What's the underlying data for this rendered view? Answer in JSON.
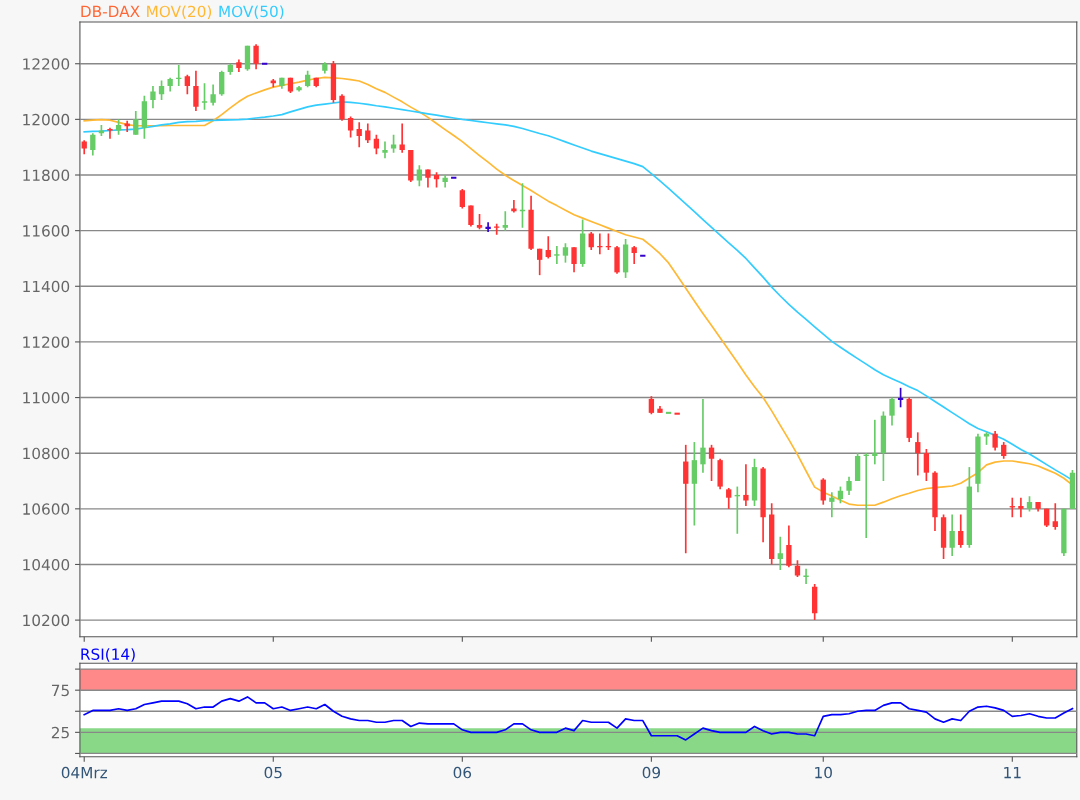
{
  "chart_data": [
    {
      "type": "candlestick",
      "title": "DB-DAX",
      "legend": "top left",
      "grid": "y",
      "tick_labels": "y",
      "categories": [
        null,
        null,
        null,
        null,
        null,
        null,
        null,
        null,
        null,
        null,
        null,
        null,
        null,
        null,
        null,
        null,
        null,
        null,
        null,
        null,
        null,
        null,
        null,
        null,
        null,
        null,
        null,
        null,
        null,
        null,
        null,
        null,
        null,
        null,
        null,
        null,
        null,
        null,
        null,
        null,
        null,
        null,
        null,
        null,
        null,
        null,
        null,
        null,
        null,
        null,
        null,
        null,
        null,
        null,
        null,
        null,
        null,
        null,
        null,
        null,
        null,
        null,
        null,
        null,
        null,
        null,
        null,
        null,
        null,
        null,
        null,
        null,
        null,
        null,
        null,
        null,
        null,
        null,
        null,
        null,
        null,
        null,
        null,
        null,
        null,
        null,
        null,
        null,
        null,
        null,
        null,
        null,
        null,
        null,
        null,
        null,
        null,
        null,
        null,
        null,
        null,
        null,
        null,
        null,
        null,
        null,
        null,
        null,
        null,
        null,
        null,
        null,
        null,
        null,
        null,
        null
      ],
      "ohlc": [
        [
          11920,
          11925,
          11875,
          11895
        ],
        [
          11890,
          11950,
          11870,
          11945
        ],
        [
          11950,
          11980,
          11940,
          11960
        ],
        [
          11965,
          11970,
          11930,
          11960
        ],
        [
          11960,
          12000,
          11945,
          11980
        ],
        [
          11985,
          11995,
          11955,
          11975
        ],
        [
          11945,
          12030,
          11945,
          12000
        ],
        [
          11970,
          12085,
          11930,
          12065
        ],
        [
          12070,
          12120,
          12040,
          12100
        ],
        [
          12090,
          12140,
          12070,
          12120
        ],
        [
          12120,
          12150,
          12100,
          12145
        ],
        [
          12145,
          12195,
          12120,
          12150
        ],
        [
          12155,
          12160,
          12090,
          12120
        ],
        [
          12120,
          12175,
          12030,
          12045
        ],
        [
          12060,
          12130,
          12035,
          12065
        ],
        [
          12060,
          12125,
          12050,
          12090
        ],
        [
          12090,
          12175,
          12085,
          12170
        ],
        [
          12170,
          12200,
          12160,
          12195
        ],
        [
          12205,
          12215,
          12170,
          12185
        ],
        [
          12180,
          12265,
          12175,
          12265
        ],
        [
          12265,
          12270,
          12180,
          12200
        ],
        [
          12200,
          12200,
          12200,
          12200
        ],
        [
          12140,
          12145,
          12115,
          12130
        ],
        [
          12120,
          12150,
          12110,
          12150
        ],
        [
          12150,
          12150,
          12095,
          12100
        ],
        [
          12105,
          12120,
          12100,
          12115
        ],
        [
          12120,
          12175,
          12115,
          12160
        ],
        [
          12150,
          12150,
          12115,
          12120
        ],
        [
          12175,
          12205,
          12165,
          12200
        ],
        [
          12200,
          12210,
          12060,
          12070
        ],
        [
          12085,
          12090,
          11995,
          12000
        ],
        [
          12005,
          12010,
          11935,
          11960
        ],
        [
          11965,
          11990,
          11900,
          11940
        ],
        [
          11960,
          11985,
          11915,
          11925
        ],
        [
          11930,
          11945,
          11875,
          11895
        ],
        [
          11880,
          11920,
          11860,
          11890
        ],
        [
          11895,
          11945,
          11880,
          11910
        ],
        [
          11910,
          11985,
          11880,
          11890
        ],
        [
          11890,
          11890,
          11775,
          11780
        ],
        [
          11780,
          11835,
          11760,
          11820
        ],
        [
          11820,
          11820,
          11755,
          11790
        ],
        [
          11800,
          11810,
          11755,
          11785
        ],
        [
          11775,
          11800,
          11755,
          11790
        ],
        [
          11790,
          11790,
          11790,
          11790
        ],
        [
          11745,
          11750,
          11680,
          11685
        ],
        [
          11690,
          11690,
          11615,
          11620
        ],
        [
          11620,
          11660,
          11605,
          11610
        ],
        [
          11610,
          11630,
          11595,
          11610
        ],
        [
          11615,
          11625,
          11585,
          11610
        ],
        [
          11610,
          11670,
          11600,
          11620
        ],
        [
          11680,
          11710,
          11665,
          11670
        ],
        [
          11670,
          11770,
          11610,
          11675
        ],
        [
          11675,
          11725,
          11530,
          11535
        ],
        [
          11535,
          11535,
          11440,
          11495
        ],
        [
          11530,
          11580,
          11500,
          11505
        ],
        [
          11510,
          11545,
          11480,
          11515
        ],
        [
          11510,
          11555,
          11485,
          11540
        ],
        [
          11540,
          11540,
          11450,
          11480
        ],
        [
          11480,
          11640,
          11470,
          11590
        ],
        [
          11590,
          11595,
          11530,
          11540
        ],
        [
          11545,
          11590,
          11515,
          11540
        ],
        [
          11545,
          11590,
          11530,
          11540
        ],
        [
          11540,
          11545,
          11445,
          11450
        ],
        [
          11450,
          11570,
          11430,
          11550
        ],
        [
          11540,
          11545,
          11480,
          11520
        ],
        [
          11510,
          11510,
          11510,
          11510
        ],
        [
          10995,
          11005,
          10940,
          10945
        ],
        [
          10960,
          10970,
          10945,
          10945
        ],
        [
          10945,
          10945,
          10945,
          10945
        ],
        [
          10942,
          10942,
          10942,
          10942
        ],
        [
          10770,
          10830,
          10440,
          10690
        ],
        [
          10690,
          10840,
          10540,
          10775
        ],
        [
          10760,
          10995,
          10730,
          10820
        ],
        [
          10820,
          10830,
          10700,
          10780
        ],
        [
          10775,
          10780,
          10670,
          10680
        ],
        [
          10670,
          10675,
          10600,
          10640
        ],
        [
          10645,
          10680,
          10510,
          10650
        ],
        [
          10650,
          10760,
          10610,
          10630
        ],
        [
          10630,
          10780,
          10610,
          10750
        ],
        [
          10745,
          10750,
          10480,
          10570
        ],
        [
          10580,
          10620,
          10400,
          10420
        ],
        [
          10420,
          10500,
          10380,
          10440
        ],
        [
          10470,
          10540,
          10390,
          10395
        ],
        [
          10395,
          10415,
          10355,
          10360
        ],
        [
          10355,
          10385,
          10330,
          10360
        ],
        [
          10320,
          10330,
          10200,
          10225
        ],
        [
          10705,
          10710,
          10615,
          10630
        ],
        [
          10625,
          10660,
          10570,
          10640
        ],
        [
          10635,
          10680,
          10620,
          10665
        ],
        [
          10665,
          10715,
          10650,
          10700
        ],
        [
          10700,
          10800,
          10700,
          10790
        ],
        [
          10790,
          10800,
          10495,
          10795
        ],
        [
          10790,
          10920,
          10760,
          10800
        ],
        [
          10800,
          10950,
          10700,
          10935
        ],
        [
          10935,
          11000,
          10900,
          10995
        ],
        [
          10995,
          11035,
          10965,
          10995
        ],
        [
          10995,
          11000,
          10840,
          10855
        ],
        [
          10840,
          10875,
          10720,
          10800
        ],
        [
          10800,
          10815,
          10700,
          10730
        ],
        [
          10730,
          10735,
          10520,
          10570
        ],
        [
          10570,
          10580,
          10420,
          10460
        ],
        [
          10460,
          10580,
          10430,
          10520
        ],
        [
          10520,
          10580,
          10460,
          10470
        ],
        [
          10470,
          10750,
          10460,
          10680
        ],
        [
          10690,
          10870,
          10660,
          10860
        ],
        [
          10860,
          10875,
          10830,
          10870
        ],
        [
          10870,
          10880,
          10810,
          10820
        ],
        [
          10830,
          10840,
          10780,
          10790
        ],
        [
          10610,
          10640,
          10570,
          10605
        ],
        [
          10610,
          10640,
          10570,
          10600
        ],
        [
          10600,
          10645,
          10590,
          10625
        ],
        [
          10625,
          10625,
          10590,
          10600
        ],
        [
          10600,
          10600,
          10535,
          10540
        ],
        [
          10555,
          10620,
          10525,
          10535
        ],
        [
          10440,
          10600,
          10430,
          10600
        ],
        [
          10600,
          10740,
          10600,
          10730
        ]
      ],
      "colors": [
        "#ff3333",
        "#66cc66",
        "#66cc66",
        "#ff3333",
        "#66cc66",
        "#ff3333",
        "#66cc66",
        "#66cc66",
        "#66cc66",
        "#66cc66",
        "#66cc66",
        "#66cc66",
        "#ff3333",
        "#ff3333",
        "#66cc66",
        "#66cc66",
        "#66cc66",
        "#66cc66",
        "#ff3333",
        "#66cc66",
        "#ff3333",
        "#3300cc",
        "#ff3333",
        "#66cc66",
        "#ff3333",
        "#66cc66",
        "#66cc66",
        "#ff3333",
        "#66cc66",
        "#ff3333",
        "#ff3333",
        "#ff3333",
        "#ff3333",
        "#ff3333",
        "#ff3333",
        "#66cc66",
        "#66cc66",
        "#ff3333",
        "#ff3333",
        "#66cc66",
        "#ff3333",
        "#ff3333",
        "#66cc66",
        "#3300cc",
        "#ff3333",
        "#ff3333",
        "#ff3333",
        "#3300cc",
        "#ff3333",
        "#66cc66",
        "#ff3333",
        "#66cc66",
        "#ff3333",
        "#ff3333",
        "#ff3333",
        "#66cc66",
        "#66cc66",
        "#ff3333",
        "#66cc66",
        "#ff3333",
        "#ff3333",
        "#ff3333",
        "#ff3333",
        "#66cc66",
        "#ff3333",
        "#3300cc",
        "#ff3333",
        "#ff3333",
        "#66cc66",
        "#ff3333",
        "#ff3333",
        "#66cc66",
        "#66cc66",
        "#ff3333",
        "#ff3333",
        "#ff3333",
        "#66cc66",
        "#ff3333",
        "#66cc66",
        "#ff3333",
        "#ff3333",
        "#66cc66",
        "#ff3333",
        "#ff3333",
        "#66cc66",
        "#ff3333",
        "#ff3333",
        "#66cc66",
        "#66cc66",
        "#66cc66",
        "#66cc66",
        "#66cc66",
        "#66cc66",
        "#66cc66",
        "#66cc66",
        "#3300cc",
        "#ff3333",
        "#ff3333",
        "#ff3333",
        "#ff3333",
        "#ff3333",
        "#66cc66",
        "#ff3333",
        "#66cc66",
        "#66cc66",
        "#66cc66",
        "#ff3333",
        "#ff3333",
        "#ff3333",
        "#ff3333",
        "#66cc66",
        "#ff3333",
        "#ff3333",
        "#ff3333",
        "#66cc66",
        "#66cc66"
      ],
      "series": [
        {
          "name": "MOV(20)",
          "type": "line",
          "color": "#ffb833",
          "values": [
            11995,
            11997,
            11999,
            11997,
            11989,
            11981,
            11977,
            11977,
            11977,
            11977,
            11978,
            11978,
            11978,
            11978,
            11978,
            11995,
            12017,
            12041,
            12064,
            12083,
            12095,
            12106,
            12116,
            12122,
            12128,
            12134,
            12141,
            12147,
            12151,
            12149,
            12147,
            12143,
            12138,
            12125,
            12110,
            12097,
            12080,
            12063,
            12044,
            12027,
            12007,
            11985,
            11963,
            11942,
            11920,
            11895,
            11870,
            11846,
            11821,
            11799,
            11780,
            11762,
            11744,
            11725,
            11706,
            11690,
            11673,
            11657,
            11645,
            11633,
            11621,
            11609,
            11597,
            11585,
            11577,
            11569,
            11544,
            11517,
            11484,
            11439,
            11393,
            11347,
            11302,
            11259,
            11215,
            11171,
            11127,
            11081,
            11039,
            11000,
            10952,
            10900,
            10849,
            10795,
            10736,
            10678,
            10660,
            10646,
            10631,
            10617,
            10613,
            10613,
            10613,
            10624,
            10636,
            10647,
            10656,
            10666,
            10673,
            10676,
            10679,
            10682,
            10692,
            10711,
            10730,
            10758,
            10768,
            10772,
            10772,
            10767,
            10762,
            10754,
            10741,
            10728,
            10710,
            10685
          ]
        },
        {
          "name": "MOV(50)",
          "type": "line",
          "color": "#33ccff",
          "values": [
            11955,
            11957,
            11958,
            11960,
            11962,
            11963,
            11965,
            11970,
            11975,
            11980,
            11984,
            11989,
            11992,
            11993,
            11995,
            11996,
            11997,
            11998,
            11999,
            12001,
            12005,
            12008,
            12012,
            12017,
            12027,
            12036,
            12045,
            12051,
            12055,
            12059,
            12063,
            12061,
            12058,
            12054,
            12049,
            12045,
            12040,
            12035,
            12030,
            12025,
            12020,
            12015,
            12010,
            12005,
            12000,
            11996,
            11992,
            11988,
            11984,
            11980,
            11975,
            11967,
            11958,
            11949,
            11941,
            11930,
            11919,
            11908,
            11897,
            11886,
            11877,
            11868,
            11859,
            11850,
            11841,
            11830,
            11805,
            11779,
            11752,
            11724,
            11696,
            11668,
            11640,
            11612,
            11584,
            11556,
            11529,
            11500,
            11466,
            11433,
            11397,
            11365,
            11335,
            11307,
            11281,
            11254,
            11228,
            11202,
            11181,
            11160,
            11140,
            11120,
            11100,
            11082,
            11068,
            11054,
            11039,
            11025,
            11006,
            10986,
            10966,
            10946,
            10926,
            10906,
            10889,
            10877,
            10864,
            10850,
            10832,
            10813,
            10797,
            10778,
            10759,
            10740,
            10722,
            10703
          ]
        }
      ],
      "ylim": [
        10140,
        12350
      ],
      "yticks": [
        10200,
        10400,
        10600,
        10800,
        11000,
        11200,
        11400,
        11600,
        11800,
        12000,
        12200
      ]
    },
    {
      "type": "line",
      "title": "RSI(14)",
      "grid": "y",
      "categories": [
        "04Mrz",
        null,
        null,
        null,
        null,
        null,
        null,
        null,
        null,
        null,
        null,
        null,
        null,
        null,
        null,
        null,
        null,
        null,
        null,
        null,
        null,
        null,
        "05",
        null,
        null,
        null,
        null,
        null,
        null,
        null,
        null,
        null,
        null,
        null,
        null,
        null,
        null,
        null,
        null,
        null,
        null,
        null,
        null,
        null,
        "06",
        null,
        null,
        null,
        null,
        null,
        null,
        null,
        null,
        null,
        null,
        null,
        null,
        null,
        null,
        null,
        null,
        null,
        null,
        null,
        null,
        null,
        "09",
        null,
        null,
        null,
        null,
        null,
        null,
        null,
        null,
        null,
        null,
        null,
        null,
        null,
        null,
        null,
        null,
        null,
        null,
        null,
        "10",
        null,
        null,
        null,
        null,
        null,
        null,
        null,
        null,
        null,
        null,
        null,
        null,
        null,
        null,
        null,
        null,
        null,
        null,
        null,
        null,
        null,
        "11",
        null,
        null,
        null,
        null,
        null,
        null,
        null
      ],
      "series": [
        {
          "color": "#0000ff",
          "values": [
            46,
            51,
            51,
            51,
            53,
            51,
            53,
            58,
            60,
            62,
            62,
            62,
            59,
            53,
            55,
            55,
            62,
            65,
            62,
            67,
            60,
            60,
            53,
            55,
            51,
            53,
            55,
            53,
            58,
            50,
            44,
            41,
            39,
            39,
            37,
            37,
            39,
            39,
            32,
            36,
            35,
            35,
            35,
            35,
            28,
            25,
            25,
            25,
            25,
            28,
            35,
            35,
            28,
            25,
            25,
            25,
            30,
            27,
            39,
            37,
            37,
            37,
            30,
            41,
            39,
            39,
            21,
            21,
            21,
            21,
            16,
            23,
            30,
            27,
            25,
            25,
            25,
            25,
            32,
            27,
            23,
            25,
            25,
            23,
            23,
            21,
            44,
            46,
            46,
            47,
            50,
            51,
            51,
            57,
            60,
            60,
            53,
            51,
            49,
            41,
            37,
            41,
            39,
            50,
            55,
            56,
            54,
            51,
            44,
            45,
            47,
            44,
            42,
            42,
            48,
            53
          ]
        }
      ],
      "bands": [
        {
          "axis": "y",
          "from": 75,
          "to": 100,
          "color": "#ff8888"
        },
        {
          "axis": "y",
          "from": 0,
          "to": 30,
          "color": "#88d888"
        }
      ],
      "ylim": [
        -4,
        107
      ],
      "yticks": [
        {
          "value": 0,
          "label": null
        },
        25,
        {
          "value": 50,
          "label": null
        },
        75,
        {
          "value": 100,
          "label": null
        }
      ]
    }
  ]
}
